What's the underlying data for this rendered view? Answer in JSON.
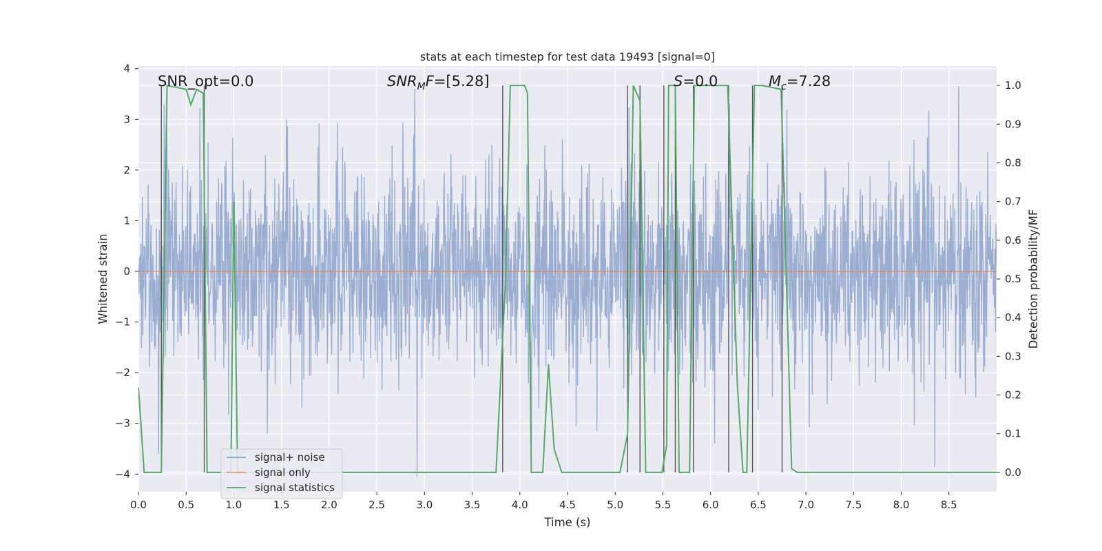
{
  "chart_data": {
    "type": "line",
    "title": "stats at each timestep for test data 19493 [signal=0]",
    "xlabel": "Time (s)",
    "ylabel": "Whitened strain",
    "ylabel_right": "Detection probability/MF",
    "xlim": [
      0.0,
      9.0
    ],
    "ylim": [
      -4.35,
      4.05
    ],
    "ylim_right": [
      -0.05,
      1.05
    ],
    "x_ticks": [
      "0.0",
      "0.5",
      "1.0",
      "1.5",
      "2.0",
      "2.5",
      "3.0",
      "3.5",
      "4.0",
      "4.5",
      "5.0",
      "5.5",
      "6.0",
      "6.5",
      "7.0",
      "7.5",
      "8.0",
      "8.5"
    ],
    "y_ticks": [
      "4",
      "3",
      "2",
      "1",
      "0",
      "−1",
      "−2",
      "−3",
      "−4"
    ],
    "y_right_ticks": [
      "1.0",
      "0.9",
      "0.8",
      "0.7",
      "0.6",
      "0.5",
      "0.4",
      "0.3",
      "0.2",
      "0.1",
      "0.0"
    ],
    "annotations": [
      {
        "text": "SNR_opt=0.0",
        "x": 0.2
      },
      {
        "text": "=[5.28]",
        "x": 2.6,
        "math": "SNR_MF"
      },
      {
        "text": "=0.0",
        "x": 5.6,
        "math": "S"
      },
      {
        "text": "=7.28",
        "x": 6.6,
        "math": "M_c"
      }
    ],
    "legend": {
      "position": "lower-left",
      "items": [
        {
          "label": "signal+ noise",
          "color": "#4c72b0"
        },
        {
          "label": "signal only",
          "color": "#dd8452"
        },
        {
          "label": "signal statistics",
          "color": "#55a868"
        }
      ]
    },
    "series": [
      {
        "name": "signal+ noise",
        "color": "#4c72b0",
        "alpha": 0.5,
        "dt": 0.00390625,
        "noise_std": 1.0,
        "seed": 19493,
        "extremes": [
          {
            "x": 0.21,
            "y": -3.6
          },
          {
            "x": 0.27,
            "y": 3.3
          },
          {
            "x": 1.35,
            "y": -3.2
          },
          {
            "x": 1.55,
            "y": 3.0
          },
          {
            "x": 2.9,
            "y": 3.6
          },
          {
            "x": 2.92,
            "y": -4.05
          },
          {
            "x": 4.12,
            "y": -3.45
          },
          {
            "x": 4.2,
            "y": -2.7
          },
          {
            "x": 6.2,
            "y": 3.3
          },
          {
            "x": 6.8,
            "y": 3.2
          },
          {
            "x": 8.35,
            "y": -3.8
          },
          {
            "x": 8.6,
            "y": 3.65
          },
          {
            "x": 8.35,
            "y": -3.85
          }
        ]
      },
      {
        "name": "signal only",
        "color": "#dd8452",
        "x": [
          0.0,
          9.0
        ],
        "y": [
          0.0,
          0.0
        ]
      },
      {
        "name": "signal statistics",
        "color": "#55a868",
        "axis": "right",
        "x": [
          0.0,
          0.06,
          0.24,
          0.3,
          0.5,
          0.55,
          0.61,
          0.68,
          0.72,
          0.76,
          0.8,
          0.92,
          0.97,
          1.0,
          1.04,
          1.1,
          1.5,
          2.0,
          2.5,
          3.0,
          3.5,
          3.75,
          3.85,
          3.9,
          4.05,
          4.08,
          4.12,
          4.24,
          4.3,
          4.36,
          4.44,
          4.5,
          4.56,
          4.7,
          5.05,
          5.13,
          5.19,
          5.26,
          5.32,
          5.42,
          5.49,
          5.54,
          5.56,
          5.63,
          5.67,
          5.73,
          5.78,
          5.83,
          5.96,
          6.18,
          6.28,
          6.34,
          6.38,
          6.46,
          6.54,
          6.74,
          6.85,
          6.91,
          7.0,
          7.5,
          8.0,
          8.5,
          9.0
        ],
        "y": [
          0.22,
          0.0,
          0.0,
          1.0,
          0.99,
          0.95,
          0.99,
          0.98,
          0.0,
          0.0,
          0.0,
          0.0,
          0.0,
          0.7,
          0.0,
          0.0,
          0.0,
          0.0,
          0.0,
          0.0,
          0.0,
          0.0,
          0.5,
          1.0,
          1.0,
          0.98,
          0.0,
          0.0,
          0.28,
          0.06,
          0.0,
          0.0,
          0.0,
          0.0,
          0.0,
          0.1,
          1.0,
          0.96,
          0.0,
          0.0,
          0.0,
          0.07,
          1.0,
          1.0,
          0.0,
          0.0,
          0.0,
          1.0,
          1.0,
          1.0,
          0.23,
          0.0,
          0.0,
          1.0,
          1.0,
          0.99,
          0.01,
          0.0,
          0.0,
          0.0,
          0.0,
          0.0,
          0.0
        ]
      }
    ],
    "vertical_markers": [
      0.24,
      0.69,
      3.82,
      5.13,
      5.26,
      5.51,
      5.63,
      5.82,
      6.19,
      6.44,
      6.75
    ]
  }
}
